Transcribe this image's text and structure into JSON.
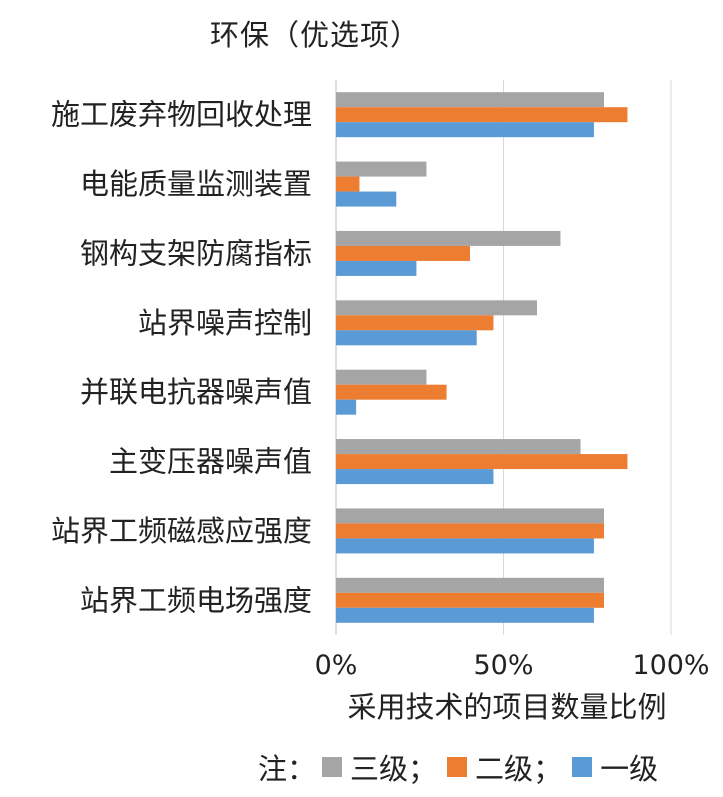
{
  "chart_data": {
    "type": "bar",
    "orientation": "horizontal",
    "title": "环保（优选项）",
    "xlabel": "采用技术的项目数量比例",
    "ylabel": "",
    "xlim": [
      0,
      100
    ],
    "x_ticks": [
      "0%",
      "50%",
      "100%"
    ],
    "grid": true,
    "categories": [
      "施工废弃物回收处理",
      "电能质量监测装置",
      "钢构支架防腐指标",
      "站界噪声控制",
      "并联电抗器噪声值",
      "主变压器噪声值",
      "站界工频磁感应强度",
      "站界工频电场强度"
    ],
    "series": [
      {
        "name": "三级",
        "color": "#a5a5a5",
        "values": [
          80,
          27,
          67,
          60,
          27,
          73,
          80,
          80
        ]
      },
      {
        "name": "二级",
        "color": "#ed7d31",
        "values": [
          87,
          7,
          40,
          47,
          33,
          87,
          80,
          80
        ]
      },
      {
        "name": "一级",
        "color": "#5b9bd5",
        "values": [
          77,
          18,
          24,
          42,
          6,
          47,
          77,
          77
        ]
      }
    ]
  },
  "legend": {
    "prefix": "注：",
    "items": [
      {
        "label": "三级",
        "sep": "；"
      },
      {
        "label": "二级",
        "sep": "；"
      },
      {
        "label": "一级",
        "sep": ""
      }
    ]
  }
}
